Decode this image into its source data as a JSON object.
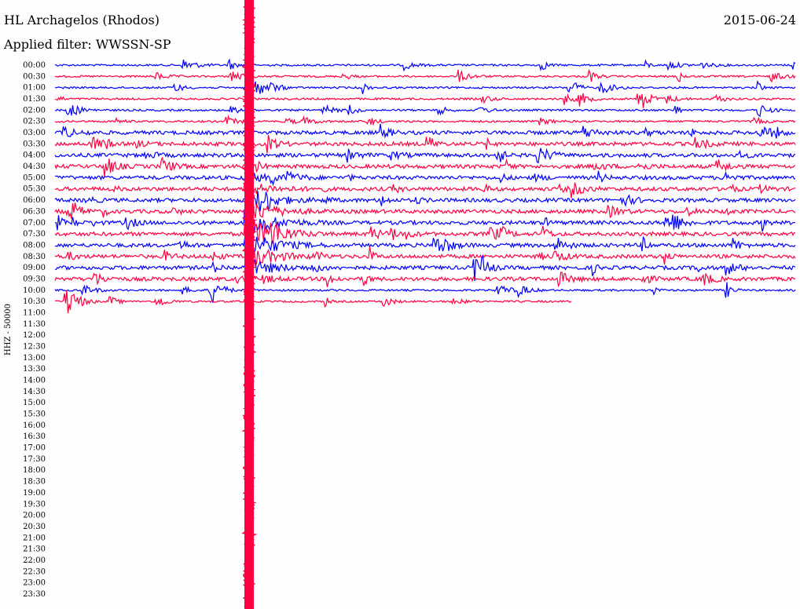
{
  "header": {
    "station": "HL Archagelos (Rhodos)",
    "date": "2015-06-24",
    "filter": "Applied filter: WWSSN-SP"
  },
  "axis": {
    "label": "HHZ - 50000",
    "rows": [
      "00:00",
      "00:30",
      "01:00",
      "01:30",
      "02:00",
      "02:30",
      "03:00",
      "03:30",
      "04:00",
      "04:30",
      "05:00",
      "05:30",
      "06:00",
      "06:30",
      "07:00",
      "07:30",
      "08:00",
      "08:30",
      "09:00",
      "09:30",
      "10:00",
      "10:30",
      "11:00",
      "11:30",
      "12:00",
      "12:30",
      "13:00",
      "13:30",
      "14:00",
      "14:30",
      "15:00",
      "15:30",
      "16:00",
      "16:30",
      "17:00",
      "17:30",
      "18:00",
      "18:30",
      "19:00",
      "19:30",
      "20:00",
      "20:30",
      "21:00",
      "21:30",
      "22:00",
      "22:30",
      "23:00",
      "23:30"
    ]
  }
}
